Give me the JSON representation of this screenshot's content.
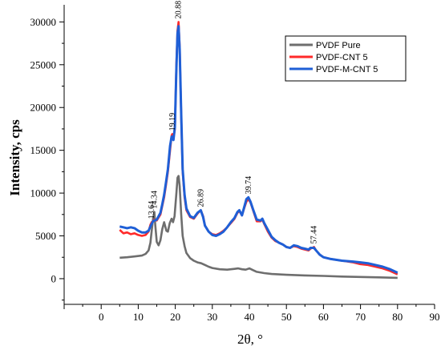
{
  "chart_data": {
    "type": "line",
    "title": "",
    "xlabel": "2θ, °",
    "ylabel": "Intensity, cps",
    "xlim": [
      -10,
      90
    ],
    "ylim": [
      -3000,
      32000
    ],
    "x_ticks": [
      0,
      10,
      20,
      30,
      40,
      50,
      60,
      70,
      80,
      90
    ],
    "y_ticks": [
      0,
      5000,
      10000,
      15000,
      20000,
      25000,
      30000
    ],
    "grid": false,
    "legend_position": "top-right",
    "series": [
      {
        "name": "PVDF Pure",
        "color": "#6e6e6e",
        "points": [
          [
            5,
            2450
          ],
          [
            7,
            2500
          ],
          [
            9,
            2600
          ],
          [
            11,
            2700
          ],
          [
            12,
            2900
          ],
          [
            12.8,
            3300
          ],
          [
            13.3,
            4200
          ],
          [
            13.64,
            5600
          ],
          [
            14.0,
            7000
          ],
          [
            14.34,
            7800
          ],
          [
            14.6,
            6200
          ],
          [
            15,
            4300
          ],
          [
            15.5,
            3900
          ],
          [
            16,
            4500
          ],
          [
            16.5,
            5800
          ],
          [
            17,
            6600
          ],
          [
            17.6,
            5600
          ],
          [
            18,
            5500
          ],
          [
            18.5,
            6500
          ],
          [
            19,
            7000
          ],
          [
            19.4,
            6600
          ],
          [
            19.8,
            7300
          ],
          [
            20.3,
            10000
          ],
          [
            20.6,
            11800
          ],
          [
            20.88,
            12000
          ],
          [
            21.2,
            10800
          ],
          [
            21.6,
            7500
          ],
          [
            22,
            5000
          ],
          [
            22.5,
            3800
          ],
          [
            23,
            3000
          ],
          [
            24,
            2400
          ],
          [
            25,
            2100
          ],
          [
            26,
            1900
          ],
          [
            27,
            1800
          ],
          [
            28,
            1600
          ],
          [
            29,
            1400
          ],
          [
            30,
            1250
          ],
          [
            32,
            1100
          ],
          [
            34,
            1050
          ],
          [
            36,
            1150
          ],
          [
            37,
            1200
          ],
          [
            38,
            1100
          ],
          [
            39,
            1050
          ],
          [
            40,
            1200
          ],
          [
            41,
            1000
          ],
          [
            42,
            800
          ],
          [
            44,
            650
          ],
          [
            46,
            550
          ],
          [
            50,
            450
          ],
          [
            55,
            380
          ],
          [
            60,
            320
          ],
          [
            65,
            250
          ],
          [
            70,
            200
          ],
          [
            75,
            150
          ],
          [
            80,
            100
          ]
        ]
      },
      {
        "name": "PVDF-CNT 5",
        "color": "#ff2a2a",
        "points": [
          [
            5,
            5700
          ],
          [
            6,
            5300
          ],
          [
            7,
            5400
          ],
          [
            8,
            5200
          ],
          [
            9,
            5300
          ],
          [
            10,
            5100
          ],
          [
            11,
            5000
          ],
          [
            12,
            5100
          ],
          [
            12.8,
            5500
          ],
          [
            13.3,
            6300
          ],
          [
            13.64,
            6600
          ],
          [
            14.0,
            6700
          ],
          [
            14.34,
            6900
          ],
          [
            15,
            6800
          ],
          [
            16,
            7500
          ],
          [
            16.5,
            8500
          ],
          [
            17,
            9500
          ],
          [
            17.5,
            11000
          ],
          [
            18,
            12500
          ],
          [
            18.6,
            15000
          ],
          [
            19.0,
            16700
          ],
          [
            19.19,
            16900
          ],
          [
            19.5,
            16400
          ],
          [
            19.9,
            17500
          ],
          [
            20.3,
            25000
          ],
          [
            20.6,
            29000
          ],
          [
            20.88,
            30000
          ],
          [
            21.2,
            27000
          ],
          [
            21.6,
            19000
          ],
          [
            22,
            12500
          ],
          [
            22.5,
            9500
          ],
          [
            23,
            8000
          ],
          [
            24,
            7200
          ],
          [
            25,
            7000
          ],
          [
            26,
            7600
          ],
          [
            26.89,
            8000
          ],
          [
            27.5,
            7300
          ],
          [
            28,
            6200
          ],
          [
            29,
            5500
          ],
          [
            30,
            5200
          ],
          [
            31,
            5100
          ],
          [
            32,
            5300
          ],
          [
            33,
            5600
          ],
          [
            34,
            6000
          ],
          [
            35,
            6500
          ],
          [
            36,
            7000
          ],
          [
            36.8,
            7700
          ],
          [
            37.3,
            7900
          ],
          [
            38,
            7400
          ],
          [
            38.5,
            8100
          ],
          [
            39.2,
            9000
          ],
          [
            39.74,
            9300
          ],
          [
            40.3,
            8900
          ],
          [
            41,
            8000
          ],
          [
            42,
            6700
          ],
          [
            43,
            6700
          ],
          [
            43.5,
            6900
          ],
          [
            44,
            6400
          ],
          [
            45,
            5500
          ],
          [
            46,
            4800
          ],
          [
            47,
            4400
          ],
          [
            48,
            4200
          ],
          [
            49,
            4000
          ],
          [
            50,
            3700
          ],
          [
            51,
            3600
          ],
          [
            52,
            3800
          ],
          [
            53,
            3700
          ],
          [
            54,
            3500
          ],
          [
            55,
            3400
          ],
          [
            56,
            3300
          ],
          [
            56.5,
            3500
          ],
          [
            57.44,
            3700
          ],
          [
            58,
            3300
          ],
          [
            59,
            2800
          ],
          [
            60,
            2500
          ],
          [
            62,
            2300
          ],
          [
            65,
            2100
          ],
          [
            68,
            1900
          ],
          [
            70,
            1700
          ],
          [
            72,
            1600
          ],
          [
            74,
            1400
          ],
          [
            76,
            1200
          ],
          [
            78,
            900
          ],
          [
            80,
            500
          ]
        ]
      },
      {
        "name": "PVDF-M-CNT 5",
        "color": "#1f5fd6",
        "points": [
          [
            5,
            6100
          ],
          [
            6,
            6000
          ],
          [
            7,
            5900
          ],
          [
            8,
            6000
          ],
          [
            9,
            5900
          ],
          [
            10,
            5600
          ],
          [
            11,
            5400
          ],
          [
            12,
            5400
          ],
          [
            12.8,
            5600
          ],
          [
            13.3,
            6100
          ],
          [
            13.64,
            6400
          ],
          [
            14.0,
            6700
          ],
          [
            14.34,
            6800
          ],
          [
            15,
            6900
          ],
          [
            16,
            7700
          ],
          [
            16.5,
            8700
          ],
          [
            17,
            9800
          ],
          [
            17.5,
            11300
          ],
          [
            18,
            12800
          ],
          [
            18.6,
            15500
          ],
          [
            19.0,
            16600
          ],
          [
            19.19,
            16600
          ],
          [
            19.5,
            16200
          ],
          [
            19.9,
            17700
          ],
          [
            20.3,
            24600
          ],
          [
            20.6,
            28700
          ],
          [
            20.88,
            29500
          ],
          [
            21.2,
            26800
          ],
          [
            21.6,
            19200
          ],
          [
            22,
            12800
          ],
          [
            22.5,
            9800
          ],
          [
            23,
            8200
          ],
          [
            24,
            7300
          ],
          [
            25,
            7100
          ],
          [
            26,
            7700
          ],
          [
            26.89,
            8000
          ],
          [
            27.5,
            7200
          ],
          [
            28,
            6200
          ],
          [
            29,
            5500
          ],
          [
            30,
            5100
          ],
          [
            31,
            5000
          ],
          [
            32,
            5200
          ],
          [
            33,
            5500
          ],
          [
            34,
            6000
          ],
          [
            35,
            6600
          ],
          [
            36,
            7100
          ],
          [
            36.8,
            7800
          ],
          [
            37.3,
            8000
          ],
          [
            38,
            7400
          ],
          [
            38.5,
            8200
          ],
          [
            39.2,
            9300
          ],
          [
            39.74,
            9500
          ],
          [
            40.3,
            9000
          ],
          [
            41,
            8100
          ],
          [
            42,
            6900
          ],
          [
            43,
            6800
          ],
          [
            43.5,
            7000
          ],
          [
            44,
            6500
          ],
          [
            45,
            5700
          ],
          [
            46,
            4900
          ],
          [
            47,
            4500
          ],
          [
            48,
            4200
          ],
          [
            49,
            4000
          ],
          [
            50,
            3700
          ],
          [
            51,
            3600
          ],
          [
            52,
            3900
          ],
          [
            53,
            3800
          ],
          [
            54,
            3600
          ],
          [
            55,
            3500
          ],
          [
            56,
            3400
          ],
          [
            56.5,
            3600
          ],
          [
            57.44,
            3600
          ],
          [
            58,
            3300
          ],
          [
            59,
            2800
          ],
          [
            60,
            2500
          ],
          [
            62,
            2300
          ],
          [
            65,
            2100
          ],
          [
            68,
            2000
          ],
          [
            70,
            1900
          ],
          [
            72,
            1800
          ],
          [
            74,
            1600
          ],
          [
            76,
            1400
          ],
          [
            78,
            1100
          ],
          [
            80,
            700
          ]
        ]
      }
    ],
    "annotations": [
      {
        "text": "13.64",
        "x": 13.64,
        "y": 6600
      },
      {
        "text": "14.34",
        "x": 14.34,
        "y": 7800
      },
      {
        "text": "19.19",
        "x": 19.19,
        "y": 16900
      },
      {
        "text": "20.88",
        "x": 20.88,
        "y": 30000
      },
      {
        "text": "26.89",
        "x": 26.89,
        "y": 8000
      },
      {
        "text": "39.74",
        "x": 39.74,
        "y": 9500
      },
      {
        "text": "57.44",
        "x": 57.44,
        "y": 3700
      }
    ]
  }
}
